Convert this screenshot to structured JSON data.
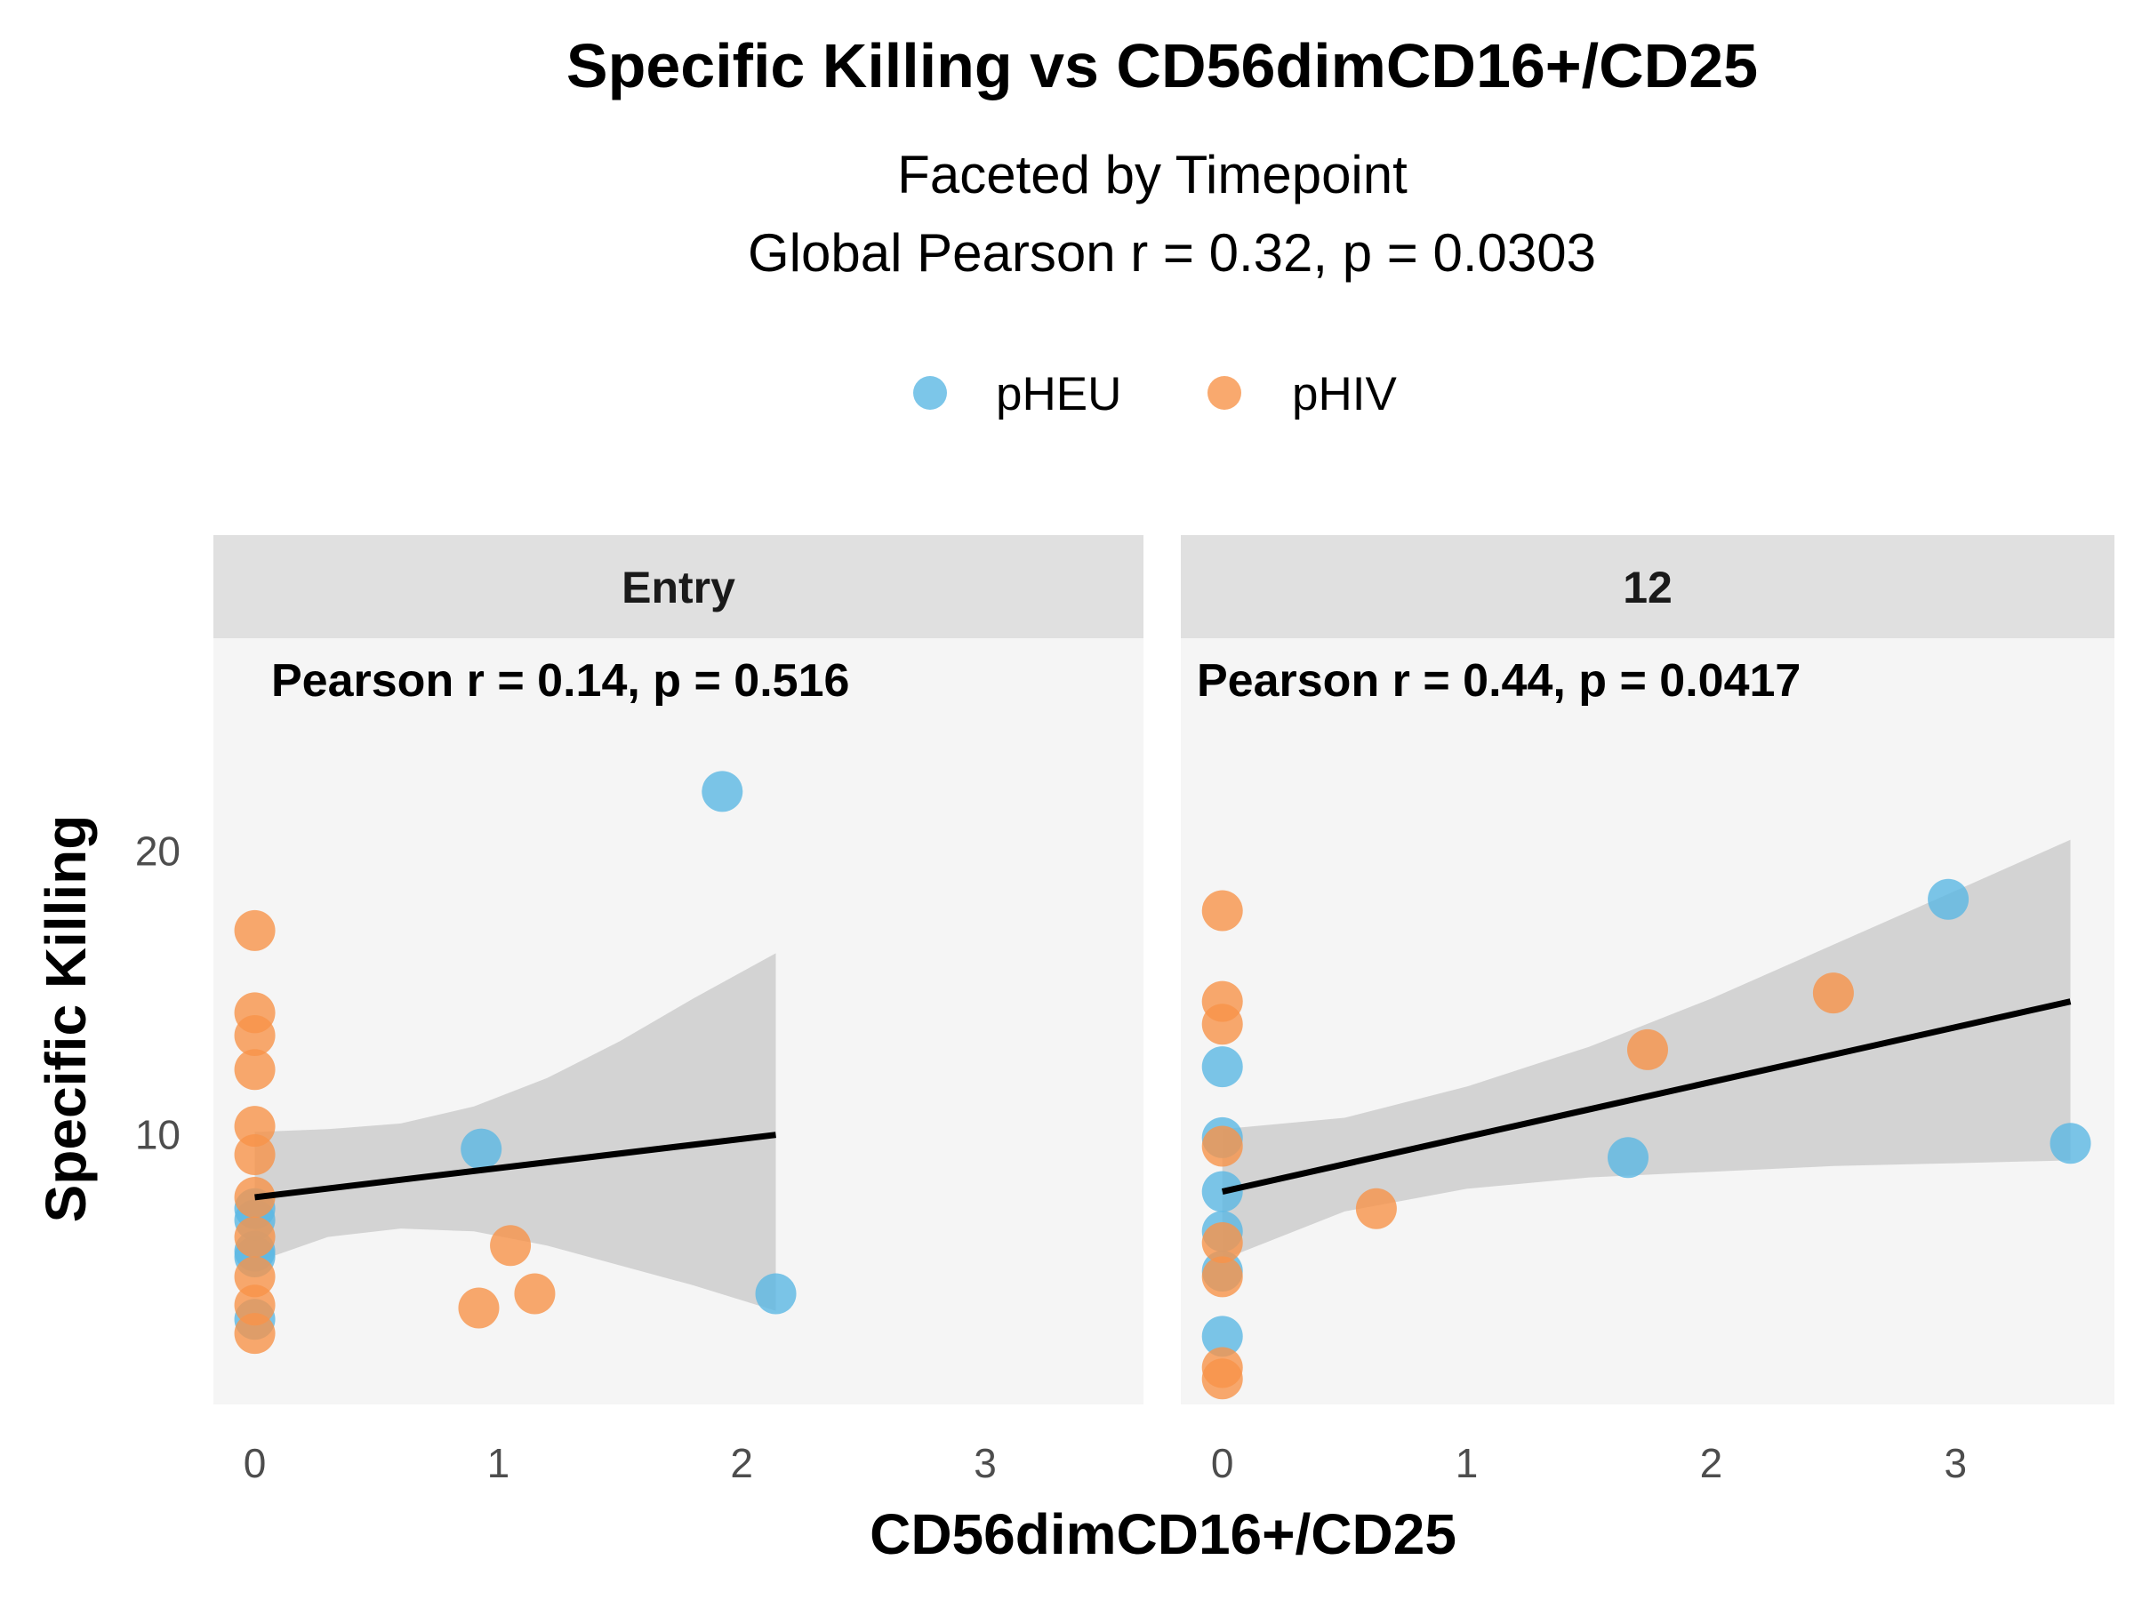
{
  "title": "Specific Killing vs CD56dimCD16+/CD25",
  "subtitle_lines": [
    "Faceted by Timepoint",
    "Global Pearson r = 0.32, p = 0.0303"
  ],
  "legend": [
    {
      "label": "pHEU",
      "color": "#5BB8E4"
    },
    {
      "label": "pHIV",
      "color": "#F7944A"
    }
  ],
  "chart_data": {
    "type": "scatter",
    "title": "Specific Killing vs CD56dimCD16+/CD25",
    "xlabel": "CD56dimCD16+/CD25",
    "ylabel": "Specific Killing",
    "xlim": [
      -0.17,
      3.65
    ],
    "ylim": [
      0.5,
      27.5
    ],
    "x_ticks": [
      0,
      1,
      2,
      3
    ],
    "y_ticks": [
      10,
      20
    ],
    "grid": false,
    "legend_position": "top",
    "panel_background": "#F5F5F5",
    "strip_background": "#E0E0E0",
    "facets": [
      {
        "label": "Entry",
        "annotation": "Pearson r = 0.14, p = 0.516",
        "series": [
          {
            "name": "pHEU",
            "color": "#5BB8E4",
            "points": [
              [
                1.92,
                22.1
              ],
              [
                0.93,
                9.5
              ],
              [
                2.14,
                4.4
              ],
              [
                0.0,
                7.4
              ],
              [
                0.0,
                7.0
              ],
              [
                0.0,
                5.9
              ],
              [
                0.0,
                5.7
              ],
              [
                0.0,
                3.5
              ]
            ]
          },
          {
            "name": "pHIV",
            "color": "#F7944A",
            "points": [
              [
                0.0,
                17.2
              ],
              [
                0.0,
                14.3
              ],
              [
                0.0,
                13.5
              ],
              [
                0.0,
                12.3
              ],
              [
                0.0,
                10.3
              ],
              [
                0.0,
                9.3
              ],
              [
                0.0,
                7.8
              ],
              [
                0.0,
                6.4
              ],
              [
                0.0,
                5.0
              ],
              [
                0.0,
                4.0
              ],
              [
                0.0,
                3.0
              ],
              [
                1.05,
                6.1
              ],
              [
                1.15,
                4.4
              ],
              [
                0.92,
                3.9
              ]
            ]
          }
        ],
        "fit": {
          "x": [
            0.0,
            2.14
          ],
          "y": [
            7.8,
            10.0
          ]
        },
        "ci_upper": [
          [
            0.0,
            10.1
          ],
          [
            0.3,
            10.2
          ],
          [
            0.6,
            10.4
          ],
          [
            0.9,
            11.0
          ],
          [
            1.2,
            12.0
          ],
          [
            1.5,
            13.3
          ],
          [
            1.8,
            14.8
          ],
          [
            2.14,
            16.4
          ]
        ],
        "ci_lower": [
          [
            0.0,
            5.5
          ],
          [
            0.3,
            6.4
          ],
          [
            0.6,
            6.7
          ],
          [
            0.9,
            6.6
          ],
          [
            1.2,
            6.1
          ],
          [
            1.5,
            5.4
          ],
          [
            1.8,
            4.7
          ],
          [
            2.14,
            3.8
          ]
        ]
      },
      {
        "label": "12",
        "annotation": "Pearson r = 0.44, p = 0.0417",
        "series": [
          {
            "name": "pHEU",
            "color": "#5BB8E4",
            "points": [
              [
                2.97,
                18.3
              ],
              [
                3.47,
                9.7
              ],
              [
                1.66,
                9.2
              ],
              [
                0.0,
                12.4
              ],
              [
                0.0,
                9.9
              ],
              [
                0.0,
                8.0
              ],
              [
                0.0,
                6.6
              ],
              [
                0.0,
                5.2
              ],
              [
                0.0,
                2.9
              ]
            ]
          },
          {
            "name": "pHIV",
            "color": "#F7944A",
            "points": [
              [
                0.0,
                17.9
              ],
              [
                0.0,
                14.7
              ],
              [
                0.0,
                13.9
              ],
              [
                0.0,
                9.6
              ],
              [
                0.0,
                6.2
              ],
              [
                0.0,
                5.0
              ],
              [
                0.0,
                1.8
              ],
              [
                0.0,
                1.4
              ],
              [
                2.5,
                15.0
              ],
              [
                1.74,
                13.0
              ],
              [
                0.63,
                7.4
              ]
            ]
          }
        ],
        "fit": {
          "x": [
            0.0,
            3.47
          ],
          "y": [
            8.0,
            14.7
          ]
        },
        "ci_upper": [
          [
            0.0,
            10.2
          ],
          [
            0.5,
            10.6
          ],
          [
            1.0,
            11.7
          ],
          [
            1.5,
            13.1
          ],
          [
            2.0,
            14.8
          ],
          [
            2.5,
            16.7
          ],
          [
            3.0,
            18.6
          ],
          [
            3.47,
            20.4
          ]
        ],
        "ci_lower": [
          [
            0.0,
            5.6
          ],
          [
            0.5,
            7.3
          ],
          [
            1.0,
            8.1
          ],
          [
            1.5,
            8.5
          ],
          [
            2.0,
            8.7
          ],
          [
            2.5,
            8.9
          ],
          [
            3.0,
            9.0
          ],
          [
            3.47,
            9.1
          ]
        ]
      }
    ]
  }
}
